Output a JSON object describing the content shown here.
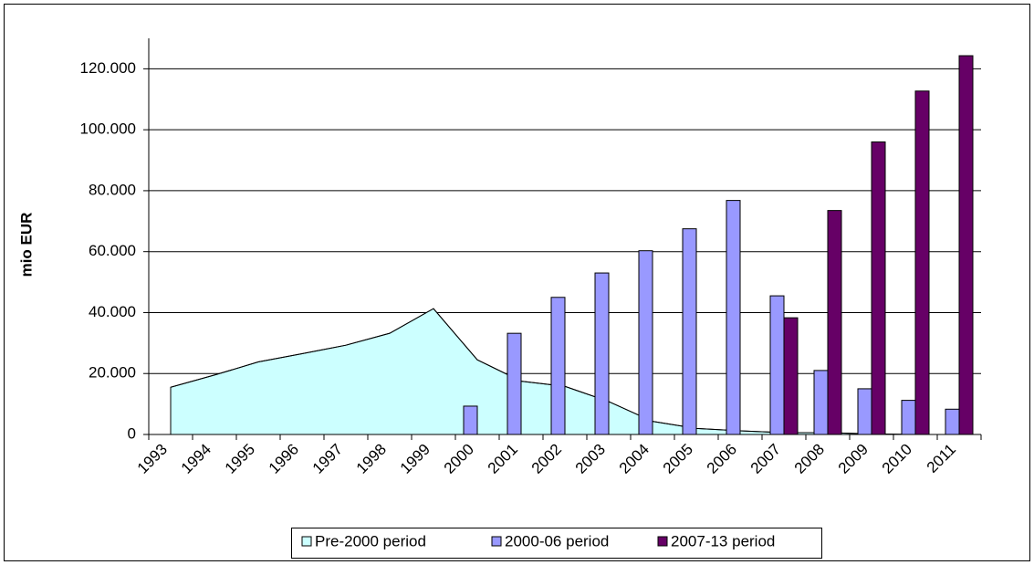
{
  "chart_data": {
    "type": "bar",
    "y_label": "mio EUR",
    "categories": [
      "1993",
      "1994",
      "1995",
      "1996",
      "1997",
      "1998",
      "1999",
      "2000",
      "2001",
      "2002",
      "2003",
      "2004",
      "2005",
      "2006",
      "2007",
      "2008",
      "2009",
      "2010",
      "2011"
    ],
    "series": [
      {
        "name": "Pre-2000 period",
        "type": "area",
        "color": "#ccffff",
        "values": [
          15500,
          19500,
          23800,
          26500,
          29300,
          33200,
          41300,
          24500,
          17500,
          15800,
          10800,
          4300,
          2000,
          1200,
          600,
          600,
          200,
          0,
          0
        ]
      },
      {
        "name": "2000-06 period",
        "type": "bar",
        "color": "#9999ff",
        "values": [
          null,
          null,
          null,
          null,
          null,
          null,
          null,
          9300,
          33200,
          45000,
          53000,
          60300,
          67500,
          76800,
          45500,
          21000,
          15000,
          11200,
          8300
        ]
      },
      {
        "name": "2007-13 period",
        "type": "bar",
        "color": "#660066",
        "values": [
          null,
          null,
          null,
          null,
          null,
          null,
          null,
          null,
          null,
          null,
          null,
          null,
          null,
          null,
          38300,
          73500,
          96000,
          112700,
          124300
        ]
      }
    ],
    "ylim": [
      0,
      130000
    ],
    "yticks": [
      0,
      {
        "value": 20000,
        "label": "20.000"
      },
      {
        "value": 40000,
        "label": "40.000"
      },
      {
        "value": 60000,
        "label": "60.000"
      },
      {
        "value": 80000,
        "label": "80.000"
      },
      {
        "value": 100000,
        "label": "100.000"
      },
      {
        "value": 120000,
        "label": "120.000"
      }
    ],
    "grid": true,
    "legend": "bottom"
  }
}
